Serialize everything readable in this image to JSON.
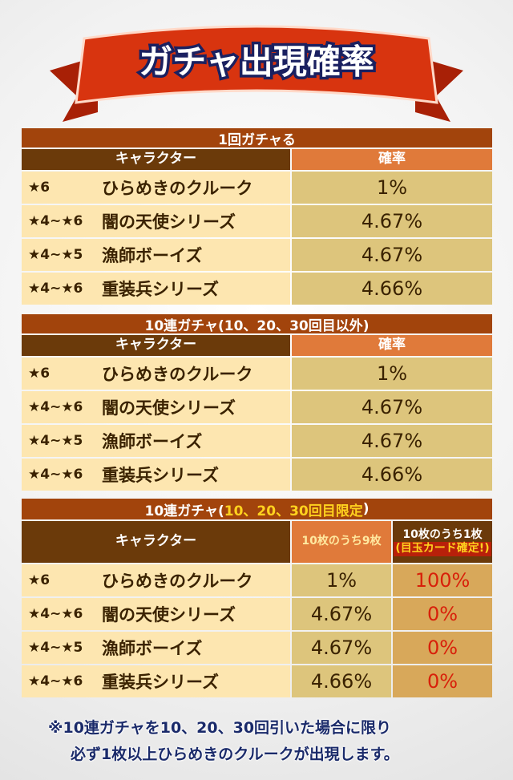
{
  "title": "ガチャ出現確率",
  "sections": [
    {
      "heading": "1回ガチャる",
      "columns": [
        "キャラクター",
        "確率"
      ],
      "rows": [
        [
          "★6",
          "ひらめきのクルーク",
          "1%"
        ],
        [
          "★4~★6",
          "闇の天使シリーズ",
          "4.67%"
        ],
        [
          "★4~★5",
          "漁師ボーイズ",
          "4.67%"
        ],
        [
          "★4~★6",
          "重装兵シリーズ",
          "4.66%"
        ]
      ]
    },
    {
      "heading": "10連ガチャ(10、20、30回目以外)",
      "columns": [
        "キャラクター",
        "確率"
      ],
      "rows": [
        [
          "★6",
          "ひらめきのクルーク",
          "1%"
        ],
        [
          "★4~★6",
          "闇の天使シリーズ",
          "4.67%"
        ],
        [
          "★4~★5",
          "漁師ボーイズ",
          "4.67%"
        ],
        [
          "★4~★6",
          "重装兵シリーズ",
          "4.66%"
        ]
      ]
    },
    {
      "heading": [
        "10連ガチャ(",
        "10、20、30回目限定",
        ")"
      ],
      "columns": [
        "キャラクター",
        "10枚のうち9枚",
        [
          "10枚のうち1枚",
          "(目玉カード確定!)"
        ]
      ],
      "rows": [
        [
          "★6",
          "ひらめきのクルーク",
          "1%",
          "100%"
        ],
        [
          "★4~★6",
          "闇の天使シリーズ",
          "4.67%",
          "0%"
        ],
        [
          "★4~★5",
          "漁師ボーイズ",
          "4.67%",
          "0%"
        ],
        [
          "★4~★6",
          "重装兵シリーズ",
          "4.66%",
          "0%"
        ]
      ]
    }
  ],
  "note": [
    "※10連ガチャを10、20、30回引いた場合に限り",
    "必ず1枚以上ひらめきのクルークが出現します。"
  ]
}
